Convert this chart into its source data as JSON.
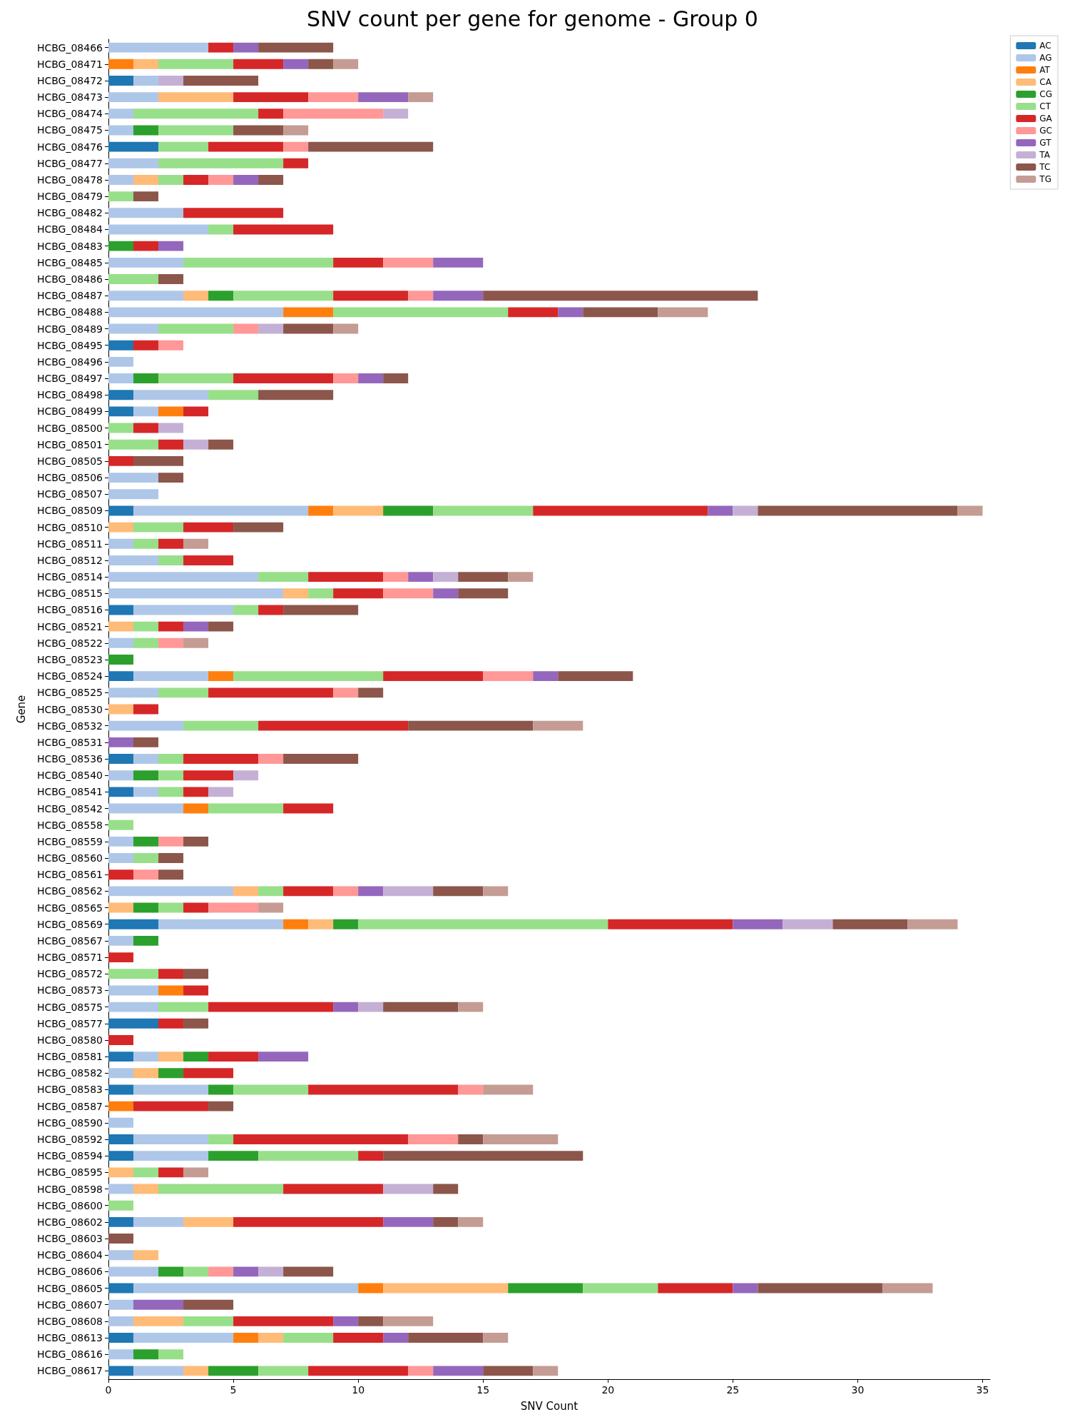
{
  "chart_data": {
    "type": "bar",
    "orientation": "horizontal",
    "stacked": true,
    "title": "SNV count per gene for genome - Group 0",
    "xlabel": "SNV Count",
    "ylabel": "Gene",
    "categories": [
      "HCBG_08466",
      "HCBG_08471",
      "HCBG_08472",
      "HCBG_08473",
      "HCBG_08474",
      "HCBG_08475",
      "HCBG_08476",
      "HCBG_08477",
      "HCBG_08478",
      "HCBG_08479",
      "HCBG_08482",
      "HCBG_08484",
      "HCBG_08483",
      "HCBG_08485",
      "HCBG_08486",
      "HCBG_08487",
      "HCBG_08488",
      "HCBG_08489",
      "HCBG_08495",
      "HCBG_08496",
      "HCBG_08497",
      "HCBG_08498",
      "HCBG_08499",
      "HCBG_08500",
      "HCBG_08501",
      "HCBG_08505",
      "HCBG_08506",
      "HCBG_08507",
      "HCBG_08509",
      "HCBG_08510",
      "HCBG_08511",
      "HCBG_08512",
      "HCBG_08514",
      "HCBG_08515",
      "HCBG_08516",
      "HCBG_08521",
      "HCBG_08522",
      "HCBG_08523",
      "HCBG_08524",
      "HCBG_08525",
      "HCBG_08530",
      "HCBG_08532",
      "HCBG_08531",
      "HCBG_08536",
      "HCBG_08540",
      "HCBG_08541",
      "HCBG_08542",
      "HCBG_08558",
      "HCBG_08559",
      "HCBG_08560",
      "HCBG_08561",
      "HCBG_08562",
      "HCBG_08565",
      "HCBG_08569",
      "HCBG_08567",
      "HCBG_08571",
      "HCBG_08572",
      "HCBG_08573",
      "HCBG_08575",
      "HCBG_08577",
      "HCBG_08580",
      "HCBG_08581",
      "HCBG_08582",
      "HCBG_08583",
      "HCBG_08587",
      "HCBG_08590",
      "HCBG_08592",
      "HCBG_08594",
      "HCBG_08595",
      "HCBG_08598",
      "HCBG_08600",
      "HCBG_08602",
      "HCBG_08603",
      "HCBG_08604",
      "HCBG_08606",
      "HCBG_08605",
      "HCBG_08607",
      "HCBG_08608",
      "HCBG_08613",
      "HCBG_08616",
      "HCBG_08617"
    ],
    "series": [
      {
        "name": "AC",
        "color": "#1f77b4",
        "values": [
          0,
          0,
          1,
          0,
          0,
          0,
          2,
          0,
          0,
          0,
          0,
          0,
          0,
          0,
          0,
          0,
          0,
          0,
          1,
          0,
          0,
          1,
          1,
          0,
          0,
          0,
          0,
          0,
          1,
          0,
          0,
          0,
          0,
          0,
          1,
          0,
          0,
          0,
          1,
          0,
          0,
          0,
          0,
          1,
          0,
          1,
          0,
          0,
          0,
          0,
          0,
          0,
          0,
          2,
          0,
          0,
          0,
          0,
          0,
          2,
          0,
          1,
          0,
          1,
          0,
          0,
          1,
          1,
          0,
          0,
          0,
          1,
          0,
          0,
          0,
          1,
          0,
          0,
          1,
          0,
          1
        ]
      },
      {
        "name": "AG",
        "color": "#aec7e8",
        "values": [
          4,
          0,
          1,
          2,
          1,
          1,
          0,
          2,
          1,
          0,
          3,
          4,
          0,
          3,
          0,
          3,
          7,
          2,
          0,
          1,
          1,
          3,
          1,
          0,
          0,
          0,
          2,
          2,
          7,
          0,
          1,
          2,
          6,
          7,
          4,
          0,
          1,
          0,
          3,
          2,
          0,
          3,
          0,
          1,
          1,
          1,
          3,
          0,
          1,
          1,
          0,
          5,
          0,
          5,
          1,
          0,
          0,
          2,
          2,
          0,
          0,
          1,
          1,
          3,
          0,
          1,
          3,
          3,
          0,
          1,
          0,
          2,
          0,
          1,
          2,
          9,
          1,
          1,
          4,
          1,
          2
        ]
      },
      {
        "name": "AT",
        "color": "#ff7f0e",
        "values": [
          0,
          1,
          0,
          0,
          0,
          0,
          0,
          0,
          0,
          0,
          0,
          0,
          0,
          0,
          0,
          0,
          2,
          0,
          0,
          0,
          0,
          0,
          1,
          0,
          0,
          0,
          0,
          0,
          1,
          0,
          0,
          0,
          0,
          0,
          0,
          0,
          0,
          0,
          1,
          0,
          0,
          0,
          0,
          0,
          0,
          0,
          1,
          0,
          0,
          0,
          0,
          0,
          0,
          1,
          0,
          0,
          0,
          1,
          0,
          0,
          0,
          0,
          0,
          0,
          1,
          0,
          0,
          0,
          0,
          0,
          0,
          0,
          0,
          0,
          0,
          1,
          0,
          0,
          1,
          0,
          0
        ]
      },
      {
        "name": "CA",
        "color": "#ffbb78",
        "values": [
          0,
          1,
          0,
          3,
          0,
          0,
          0,
          0,
          1,
          0,
          0,
          0,
          0,
          0,
          0,
          1,
          0,
          0,
          0,
          0,
          0,
          0,
          0,
          0,
          0,
          0,
          0,
          0,
          2,
          1,
          0,
          0,
          0,
          1,
          0,
          1,
          0,
          0,
          0,
          0,
          1,
          0,
          0,
          0,
          0,
          0,
          0,
          0,
          0,
          0,
          0,
          1,
          1,
          1,
          0,
          0,
          0,
          0,
          0,
          0,
          0,
          1,
          1,
          0,
          0,
          0,
          0,
          0,
          1,
          1,
          0,
          2,
          0,
          1,
          0,
          5,
          0,
          2,
          1,
          0,
          1
        ]
      },
      {
        "name": "CG",
        "color": "#2ca02c",
        "values": [
          0,
          0,
          0,
          0,
          0,
          1,
          0,
          0,
          0,
          0,
          0,
          0,
          1,
          0,
          0,
          1,
          0,
          0,
          0,
          0,
          1,
          0,
          0,
          0,
          0,
          0,
          0,
          0,
          2,
          0,
          0,
          0,
          0,
          0,
          0,
          0,
          0,
          1,
          0,
          0,
          0,
          0,
          0,
          0,
          1,
          0,
          0,
          0,
          1,
          0,
          0,
          0,
          1,
          1,
          1,
          0,
          0,
          0,
          0,
          0,
          0,
          1,
          1,
          1,
          0,
          0,
          0,
          2,
          0,
          0,
          0,
          0,
          0,
          0,
          1,
          3,
          0,
          0,
          0,
          1,
          2
        ]
      },
      {
        "name": "CT",
        "color": "#98df8a",
        "values": [
          0,
          3,
          0,
          0,
          5,
          3,
          2,
          5,
          1,
          1,
          0,
          1,
          0,
          6,
          2,
          4,
          7,
          3,
          0,
          0,
          3,
          2,
          0,
          1,
          2,
          0,
          0,
          0,
          4,
          2,
          1,
          1,
          2,
          1,
          1,
          1,
          1,
          0,
          6,
          2,
          0,
          3,
          0,
          1,
          1,
          1,
          3,
          1,
          0,
          1,
          0,
          1,
          1,
          10,
          0,
          0,
          2,
          0,
          2,
          0,
          0,
          0,
          0,
          3,
          0,
          0,
          1,
          4,
          1,
          5,
          1,
          0,
          0,
          0,
          1,
          3,
          0,
          2,
          2,
          1,
          2
        ]
      },
      {
        "name": "GA",
        "color": "#d62728",
        "values": [
          1,
          2,
          0,
          3,
          1,
          0,
          3,
          1,
          1,
          0,
          4,
          4,
          1,
          2,
          0,
          3,
          2,
          0,
          1,
          0,
          4,
          0,
          1,
          1,
          1,
          1,
          0,
          0,
          7,
          2,
          1,
          2,
          3,
          2,
          1,
          1,
          0,
          0,
          4,
          5,
          1,
          6,
          0,
          3,
          2,
          1,
          2,
          0,
          0,
          0,
          1,
          2,
          1,
          5,
          0,
          1,
          1,
          1,
          5,
          1,
          1,
          2,
          2,
          6,
          3,
          0,
          7,
          1,
          1,
          4,
          0,
          6,
          0,
          0,
          0,
          3,
          0,
          4,
          2,
          0,
          4
        ]
      },
      {
        "name": "GC",
        "color": "#ff9896",
        "values": [
          0,
          0,
          0,
          2,
          4,
          0,
          1,
          0,
          1,
          0,
          0,
          0,
          0,
          2,
          0,
          1,
          0,
          1,
          1,
          0,
          1,
          0,
          0,
          0,
          0,
          0,
          0,
          0,
          0,
          0,
          0,
          0,
          1,
          2,
          0,
          0,
          1,
          0,
          2,
          1,
          0,
          0,
          0,
          1,
          0,
          0,
          0,
          0,
          1,
          0,
          1,
          1,
          2,
          0,
          0,
          0,
          0,
          0,
          0,
          0,
          0,
          0,
          0,
          1,
          0,
          0,
          2,
          0,
          0,
          0,
          0,
          0,
          0,
          0,
          1,
          0,
          0,
          0,
          0,
          0,
          1
        ]
      },
      {
        "name": "GT",
        "color": "#9467bd",
        "values": [
          1,
          1,
          0,
          2,
          0,
          0,
          0,
          0,
          1,
          0,
          0,
          0,
          1,
          2,
          0,
          2,
          1,
          0,
          0,
          0,
          1,
          0,
          0,
          0,
          0,
          0,
          0,
          0,
          1,
          0,
          0,
          0,
          1,
          1,
          0,
          1,
          0,
          0,
          1,
          0,
          0,
          0,
          1,
          0,
          0,
          0,
          0,
          0,
          0,
          0,
          0,
          1,
          0,
          2,
          0,
          0,
          0,
          0,
          1,
          0,
          0,
          2,
          0,
          0,
          0,
          0,
          0,
          0,
          0,
          0,
          0,
          2,
          0,
          0,
          1,
          1,
          2,
          1,
          1,
          0,
          2
        ]
      },
      {
        "name": "TA",
        "color": "#c5b0d5",
        "values": [
          0,
          0,
          1,
          0,
          1,
          0,
          0,
          0,
          0,
          0,
          0,
          0,
          0,
          0,
          0,
          0,
          0,
          1,
          0,
          0,
          0,
          0,
          0,
          1,
          1,
          0,
          0,
          0,
          1,
          0,
          0,
          0,
          1,
          0,
          0,
          0,
          0,
          0,
          0,
          0,
          0,
          0,
          0,
          0,
          1,
          1,
          0,
          0,
          0,
          0,
          0,
          2,
          0,
          2,
          0,
          0,
          0,
          0,
          1,
          0,
          0,
          0,
          0,
          0,
          0,
          0,
          0,
          0,
          0,
          2,
          0,
          0,
          0,
          0,
          1,
          0,
          0,
          0,
          0,
          0,
          0
        ]
      },
      {
        "name": "TC",
        "color": "#8c564b",
        "values": [
          3,
          1,
          3,
          0,
          0,
          2,
          5,
          0,
          1,
          1,
          0,
          0,
          0,
          0,
          1,
          11,
          3,
          2,
          0,
          0,
          1,
          3,
          0,
          0,
          1,
          2,
          1,
          0,
          8,
          2,
          0,
          0,
          2,
          2,
          3,
          1,
          0,
          0,
          3,
          1,
          0,
          5,
          1,
          3,
          0,
          0,
          0,
          0,
          1,
          1,
          1,
          2,
          0,
          3,
          0,
          0,
          1,
          0,
          3,
          1,
          0,
          0,
          0,
          0,
          1,
          0,
          1,
          8,
          0,
          1,
          0,
          1,
          1,
          0,
          2,
          5,
          2,
          1,
          3,
          0,
          2
        ]
      },
      {
        "name": "TG",
        "color": "#c49c94",
        "values": [
          0,
          1,
          0,
          1,
          0,
          1,
          0,
          0,
          0,
          0,
          0,
          0,
          0,
          0,
          0,
          0,
          2,
          1,
          0,
          0,
          0,
          0,
          0,
          0,
          0,
          0,
          0,
          0,
          1,
          0,
          1,
          0,
          1,
          0,
          0,
          0,
          1,
          0,
          0,
          0,
          0,
          2,
          0,
          0,
          0,
          0,
          0,
          0,
          0,
          0,
          0,
          1,
          1,
          2,
          0,
          0,
          0,
          0,
          1,
          0,
          0,
          0,
          0,
          2,
          0,
          0,
          3,
          0,
          1,
          0,
          0,
          1,
          0,
          0,
          0,
          2,
          0,
          2,
          1,
          0,
          1
        ]
      }
    ],
    "xlim": [
      0,
      35.3
    ],
    "xticks": [
      0,
      5,
      10,
      15,
      20,
      25,
      30,
      35
    ],
    "grid": false,
    "legend": "top right"
  }
}
